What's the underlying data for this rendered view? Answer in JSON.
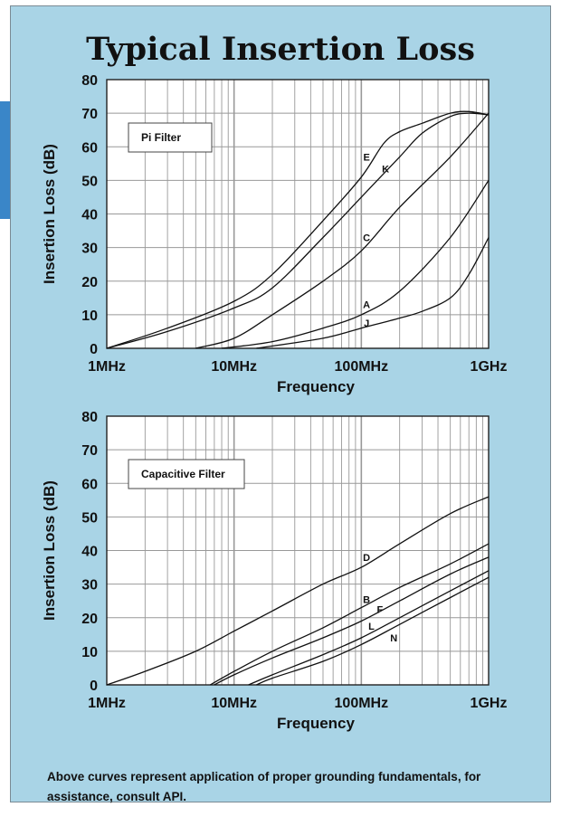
{
  "title": "Typical Insertion Loss",
  "footnote": "Above curves represent application of proper grounding fundamentals, for assistance, consult API.",
  "colors": {
    "panel": "#a9d4e6",
    "plot_bg": "#ffffff",
    "grid": "#999999",
    "curve": "#111111",
    "edge_tab": "#3a86c8"
  },
  "chart_data": [
    {
      "type": "line",
      "legend_label": "Pi Filter",
      "xlabel": "Frequency",
      "ylabel": "Insertion Loss (dB)",
      "xscale": "log",
      "xlim": [
        1,
        1000
      ],
      "ylim": [
        0,
        80
      ],
      "xtick_values": [
        1,
        10,
        100,
        1000
      ],
      "xtick_labels": [
        "1MHz",
        "10MHz",
        "100MHz",
        "1GHz"
      ],
      "ytick_values": [
        0,
        10,
        20,
        30,
        40,
        50,
        60,
        70,
        80
      ],
      "ytick_labels": [
        "0",
        "10",
        "20",
        "30",
        "40",
        "50",
        "60",
        "70",
        "80"
      ],
      "grid": true,
      "series": [
        {
          "name": "E",
          "x": [
            1,
            3,
            10,
            20,
            50,
            100,
            150,
            200,
            300,
            500,
            700,
            1000
          ],
          "y": [
            0,
            6,
            14,
            22,
            38,
            51,
            61,
            64.5,
            67,
            70,
            70.5,
            69.5
          ],
          "label_x": 110,
          "label_y": 57
        },
        {
          "name": "K",
          "x": [
            1,
            3,
            10,
            20,
            50,
            100,
            200,
            300,
            500,
            700,
            1000
          ],
          "y": [
            0,
            5,
            12,
            18,
            33,
            45,
            57,
            64,
            69,
            70,
            69.5
          ],
          "label_x": 155,
          "label_y": 53.5
        },
        {
          "name": "C",
          "x": [
            5,
            10,
            20,
            50,
            100,
            200,
            500,
            1000
          ],
          "y": [
            0,
            3,
            10,
            20,
            29,
            42,
            57,
            70
          ],
          "label_x": 110,
          "label_y": 33
        },
        {
          "name": "A",
          "x": [
            8,
            20,
            50,
            100,
            200,
            500,
            1000
          ],
          "y": [
            0,
            2,
            6,
            10,
            17,
            33,
            50
          ],
          "label_x": 110,
          "label_y": 13
        },
        {
          "name": "J",
          "x": [
            15,
            50,
            100,
            200,
            300,
            500,
            700,
            1000
          ],
          "y": [
            0,
            3,
            6,
            9,
            11,
            15,
            22,
            33
          ],
          "label_x": 110,
          "label_y": 7.5
        }
      ]
    },
    {
      "type": "line",
      "legend_label": "Capacitive Filter",
      "xlabel": "Frequency",
      "ylabel": "Insertion Loss (dB)",
      "xscale": "log",
      "xlim": [
        1,
        1000
      ],
      "ylim": [
        0,
        80
      ],
      "xtick_values": [
        1,
        10,
        100,
        1000
      ],
      "xtick_labels": [
        "1MHz",
        "10MHz",
        "100MHz",
        "1GHz"
      ],
      "ytick_values": [
        0,
        10,
        20,
        30,
        40,
        50,
        60,
        70,
        80
      ],
      "ytick_labels": [
        "0",
        "10",
        "20",
        "30",
        "40",
        "50",
        "60",
        "70",
        "80"
      ],
      "grid": true,
      "series": [
        {
          "name": "D",
          "x": [
            1,
            2,
            5,
            10,
            20,
            50,
            100,
            200,
            500,
            1000
          ],
          "y": [
            0,
            4,
            10,
            16,
            22,
            30,
            35,
            42,
            51,
            56
          ],
          "label_x": 110,
          "label_y": 38
        },
        {
          "name": "B",
          "x": [
            6.5,
            10,
            20,
            50,
            100,
            200,
            500,
            1000
          ],
          "y": [
            0,
            4,
            10,
            17,
            23,
            29,
            36,
            42
          ],
          "label_x": 110,
          "label_y": 25.5
        },
        {
          "name": "F",
          "x": [
            7,
            10,
            20,
            50,
            100,
            200,
            500,
            1000
          ],
          "y": [
            0,
            3,
            8,
            14,
            19,
            25,
            33,
            38
          ],
          "label_x": 140,
          "label_y": 22.5
        },
        {
          "name": "L",
          "x": [
            13,
            20,
            50,
            100,
            200,
            500,
            1000
          ],
          "y": [
            0,
            3,
            9,
            14,
            20,
            28,
            34
          ],
          "label_x": 120,
          "label_y": 17.5
        },
        {
          "name": "N",
          "x": [
            15,
            20,
            50,
            100,
            200,
            500,
            1000
          ],
          "y": [
            0,
            2,
            7,
            12,
            18,
            26,
            32
          ],
          "label_x": 180,
          "label_y": 14
        }
      ]
    }
  ]
}
